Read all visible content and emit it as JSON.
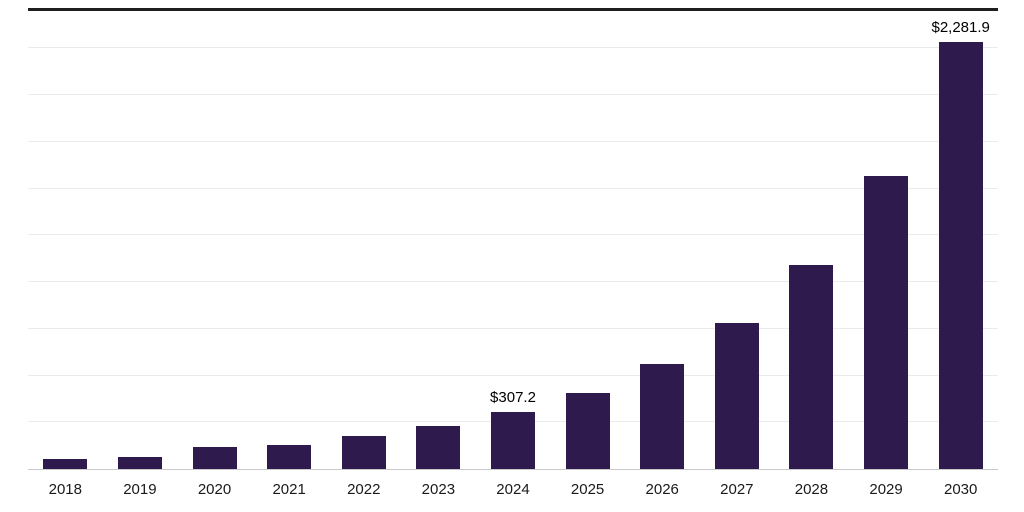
{
  "chart_data": {
    "type": "bar",
    "title": "",
    "xlabel": "",
    "ylabel": "",
    "legend": "none",
    "grid": "horizontal",
    "categories": [
      "2018",
      "2019",
      "2020",
      "2021",
      "2022",
      "2023",
      "2024",
      "2025",
      "2026",
      "2027",
      "2028",
      "2029",
      "2030"
    ],
    "values": [
      55,
      62,
      120,
      127,
      175,
      228,
      307.2,
      409,
      563,
      780,
      1093,
      1566,
      2281.9
    ],
    "annotations": [
      {
        "category": "2024",
        "text": "$307.2"
      },
      {
        "category": "2030",
        "text": "$2,281.9"
      }
    ],
    "ylim": [
      0,
      2450
    ],
    "grid_step": 250,
    "bar_color": "#2e1a4d",
    "gridline_color": "#ebebeb",
    "baseline_color": "#c9c9c9",
    "top_border_color": "#1f1f1f",
    "value_label_color": "#000000",
    "tick_label_color": "#1a1a1a",
    "background_color": "#ffffff"
  }
}
